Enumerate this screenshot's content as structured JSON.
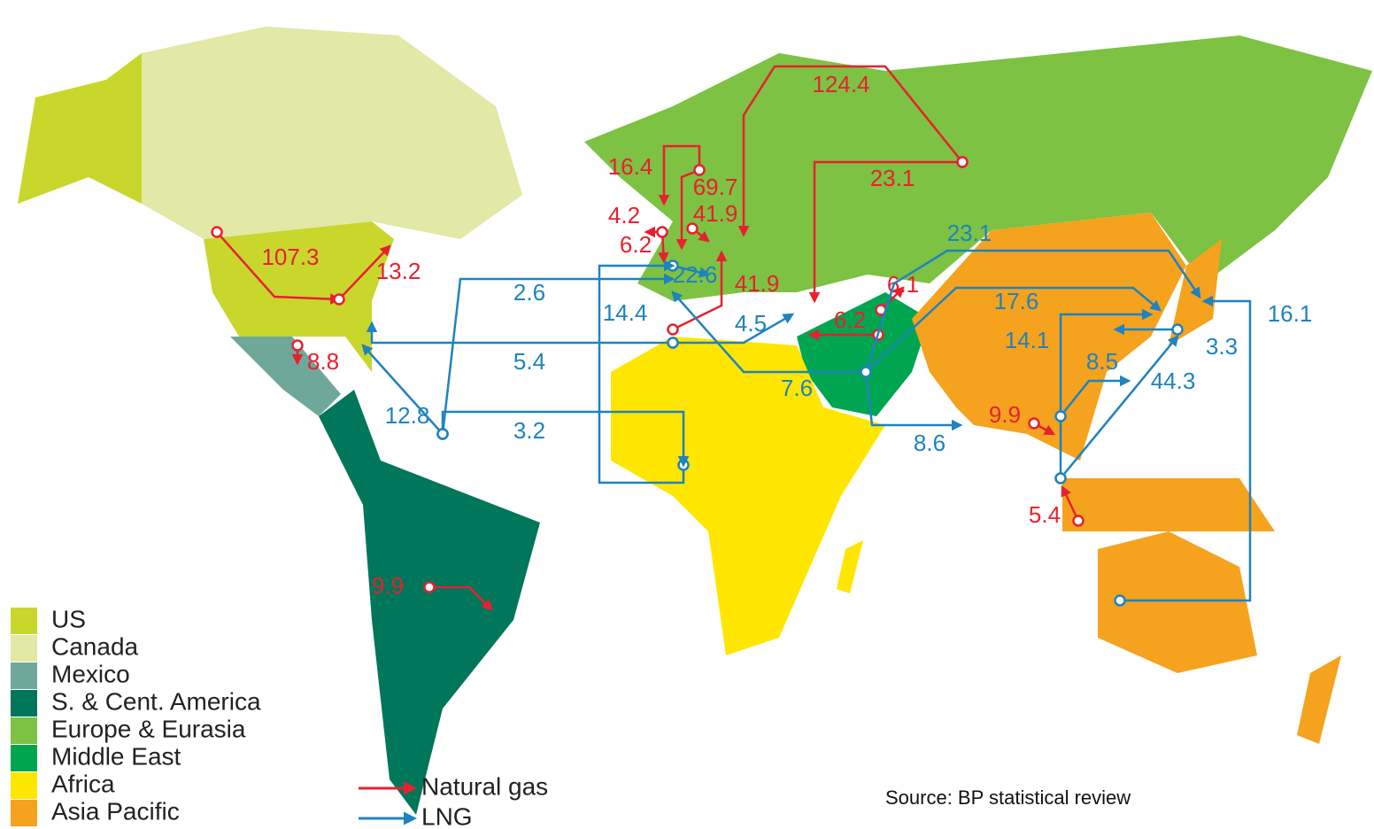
{
  "regions": [
    {
      "name": "US",
      "color": "#c9d72c"
    },
    {
      "name": "Canada",
      "color": "#e2e8a6"
    },
    {
      "name": "Mexico",
      "color": "#6fa89a"
    },
    {
      "name": "S. & Cent. America",
      "color": "#00765a"
    },
    {
      "name": "Europe & Eurasia",
      "color": "#7dc242"
    },
    {
      "name": "Middle East",
      "color": "#00a550"
    },
    {
      "name": "Africa",
      "color": "#ffe600"
    },
    {
      "name": "Asia Pacific",
      "color": "#f5a21f"
    }
  ],
  "natural_gas_flows": [
    107.3,
    13.2,
    8.8,
    16.4,
    69.7,
    4.2,
    41.9,
    6.2,
    41.9,
    124.4,
    23.1,
    6.1,
    6.2,
    9.9,
    5.4,
    9.9
  ],
  "lng_flows": [
    23.1,
    2.6,
    22.6,
    14.4,
    4.5,
    17.6,
    16.1,
    5.4,
    14.1,
    3.3,
    7.6,
    8.5,
    44.3,
    12.8,
    3.2,
    8.6
  ],
  "legend": {
    "natural_gas": "Natural gas",
    "lng": "LNG",
    "natural_gas_color": "#e8202f",
    "lng_color": "#1e83bf"
  },
  "source": "Source: BP statistical review"
}
